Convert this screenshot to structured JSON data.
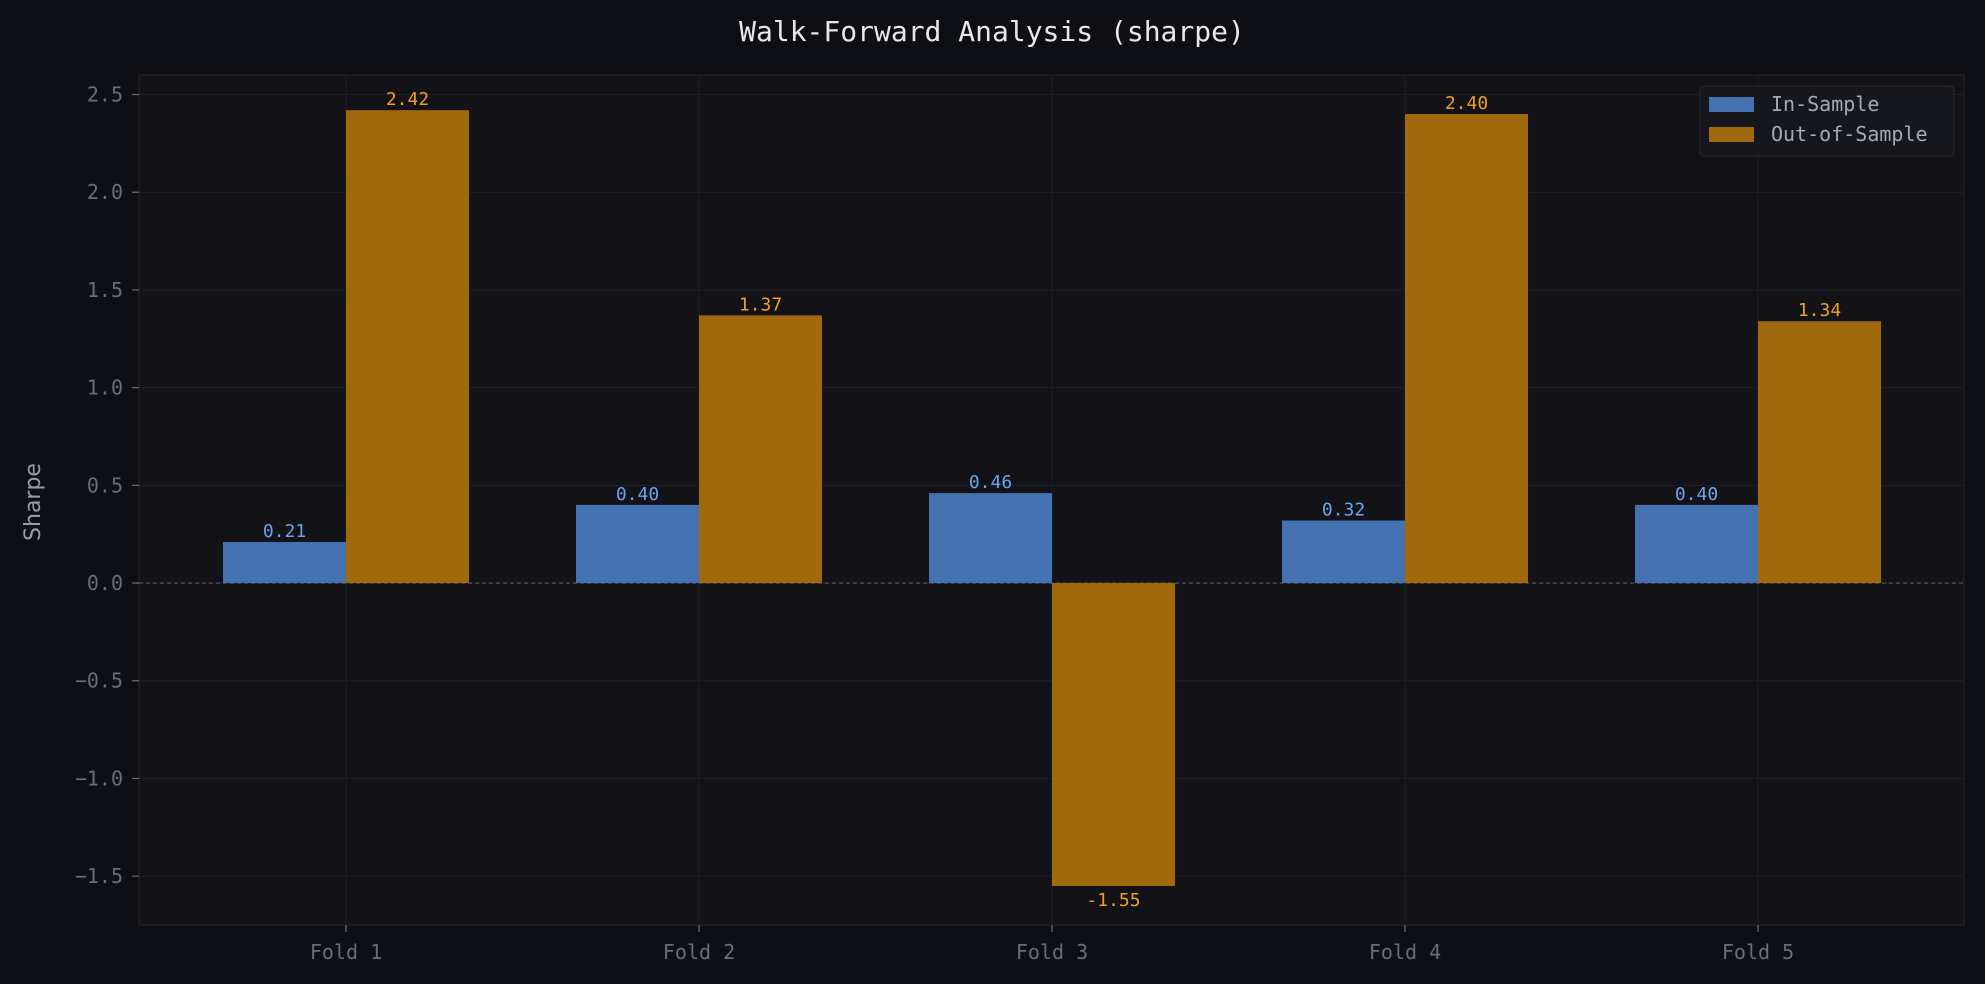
{
  "chart_data": {
    "type": "bar",
    "title": "Walk-Forward Analysis (sharpe)",
    "xlabel": "",
    "ylabel": "Sharpe",
    "categories": [
      "Fold 1",
      "Fold 2",
      "Fold 3",
      "Fold 4",
      "Fold 5"
    ],
    "series": [
      {
        "name": "In-Sample",
        "values": [
          0.21,
          0.4,
          0.46,
          0.32,
          0.4
        ],
        "labels": [
          "0.21",
          "0.40",
          "0.46",
          "0.32",
          "0.40"
        ],
        "color": "#4472b0",
        "label_color": "#6aa3f0"
      },
      {
        "name": "Out-of-Sample",
        "values": [
          2.42,
          1.37,
          -1.55,
          2.4,
          1.34
        ],
        "labels": [
          "2.42",
          "1.37",
          "-1.55",
          "2.40",
          "1.34"
        ],
        "color": "#a0690d",
        "label_color": "#f0a020"
      }
    ],
    "ylim": [
      -1.75,
      2.6
    ],
    "yticks": [
      -1.5,
      -1.0,
      -0.5,
      0.0,
      0.5,
      1.0,
      1.5,
      2.0,
      2.5
    ],
    "ytick_labels": [
      "−1.5",
      "−1.0",
      "−0.5",
      "0.0",
      "0.5",
      "1.0",
      "1.5",
      "2.0",
      "2.5"
    ],
    "grid": true,
    "zero_line": true,
    "legend_position": "top-right"
  },
  "colors": {
    "page_background": "#0d0f14",
    "plot_background": "#121217",
    "grid": "#1f2026",
    "axis_text": "#6b6d74",
    "title_text": "#e8e8ea",
    "ylabel_text": "#9a9ca3",
    "legend_text": "#a7a9b0"
  }
}
